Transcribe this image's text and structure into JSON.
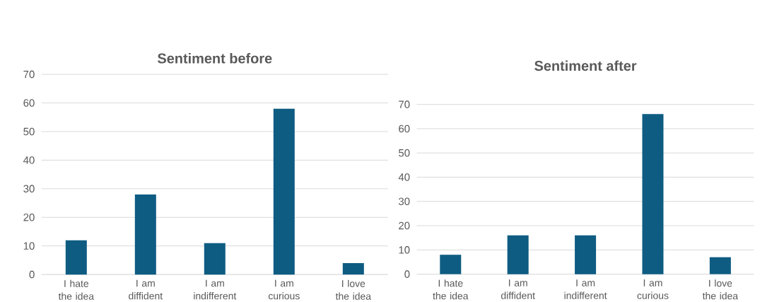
{
  "chart_data": [
    {
      "type": "bar",
      "title": "Sentiment before",
      "categories": [
        "I hate the idea",
        "I am diffident",
        "I am indifferent",
        "I am curious",
        "I love the idea"
      ],
      "values": [
        12,
        28,
        11,
        58,
        4
      ],
      "color": "#0e5c82",
      "ylim": [
        0,
        70
      ],
      "yticks": [
        0,
        10,
        20,
        30,
        40,
        50,
        60,
        70
      ],
      "grid": "y"
    },
    {
      "type": "bar",
      "title": "Sentiment after",
      "categories": [
        "I hate the idea",
        "I am diffident",
        "I am indifferent",
        "I am curious",
        "I love the idea"
      ],
      "values": [
        8,
        16,
        16,
        66,
        7
      ],
      "color": "#0e5c82",
      "ylim": [
        0,
        70
      ],
      "yticks": [
        0,
        10,
        20,
        30,
        40,
        50,
        60,
        70
      ],
      "grid": "y"
    }
  ]
}
